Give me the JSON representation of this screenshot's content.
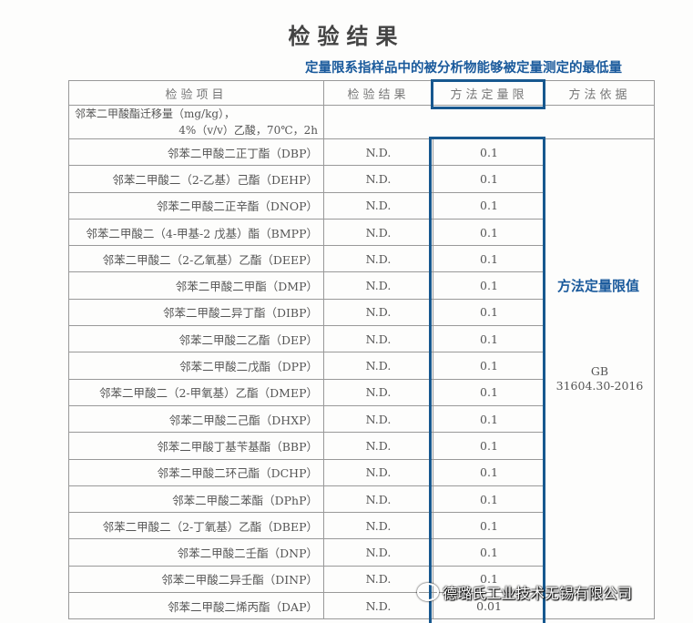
{
  "title": "检验结果",
  "note": "定量限系指样品中的被分析物能够被定量测定的最低量",
  "annotation": "方法定量限值",
  "headers": [
    "检验项目",
    "检验结果",
    "方法定量限",
    "方法依据"
  ],
  "group_row": {
    "line1": "邻苯二甲酸酯迁移量（mg/kg），",
    "line2": "4%（v/v）乙酸，70℃，2h"
  },
  "basis": {
    "line1": "GB",
    "line2": "31604.30-2016"
  },
  "rows": [
    {
      "item": "邻苯二甲酸二正丁酯（DBP）",
      "result": "N.D.",
      "limit": "0.1"
    },
    {
      "item": "邻苯二甲酸二（2-乙基）己酯（DEHP）",
      "result": "N.D.",
      "limit": "0.1"
    },
    {
      "item": "邻苯二甲酸二正辛酯（DNOP）",
      "result": "N.D.",
      "limit": "0.1"
    },
    {
      "item": "邻苯二甲酸二（4-甲基-2 戊基）酯（BMPP）",
      "result": "N.D.",
      "limit": "0.1"
    },
    {
      "item": "邻苯二甲酸二（2-乙氧基）乙酯（DEEP）",
      "result": "N.D.",
      "limit": "0.1"
    },
    {
      "item": "邻苯二甲酸二甲酯（DMP）",
      "result": "N.D.",
      "limit": "0.1"
    },
    {
      "item": "邻苯二甲酸二异丁酯（DIBP）",
      "result": "N.D.",
      "limit": "0.1"
    },
    {
      "item": "邻苯二甲酸二乙酯（DEP）",
      "result": "N.D.",
      "limit": "0.1"
    },
    {
      "item": "邻苯二甲酸二戊酯（DPP）",
      "result": "N.D.",
      "limit": "0.1"
    },
    {
      "item": "邻苯二甲酸二（2-甲氧基）乙酯（DMEP）",
      "result": "N.D.",
      "limit": "0.1"
    },
    {
      "item": "邻苯二甲酸二己酯（DHXP）",
      "result": "N.D.",
      "limit": "0.1"
    },
    {
      "item": "邻苯二甲酸丁基苄基酯（BBP）",
      "result": "N.D.",
      "limit": "0.1"
    },
    {
      "item": "邻苯二甲酸二环己酯（DCHP）",
      "result": "N.D.",
      "limit": "0.1"
    },
    {
      "item": "邻苯二甲酸二苯酯（DPhP）",
      "result": "N.D.",
      "limit": "0.1"
    },
    {
      "item": "邻苯二甲酸二（2-丁氧基）乙酯（DBEP）",
      "result": "N.D.",
      "limit": "0.1"
    },
    {
      "item": "邻苯二甲酸二壬酯（DNP）",
      "result": "N.D.",
      "limit": "0.1"
    },
    {
      "item": "邻苯二甲酸二异壬酯（DINP）",
      "result": "N.D.",
      "limit": "0.1"
    },
    {
      "item": "邻苯二甲酸二烯丙酯（DAP）",
      "result": "N.D.",
      "limit": "0.01"
    }
  ],
  "watermark": "德璐氏工业技术无锡有限公司",
  "colors": {
    "annotation_blue": "#1a5a9c",
    "box_blue": "#17588f"
  }
}
